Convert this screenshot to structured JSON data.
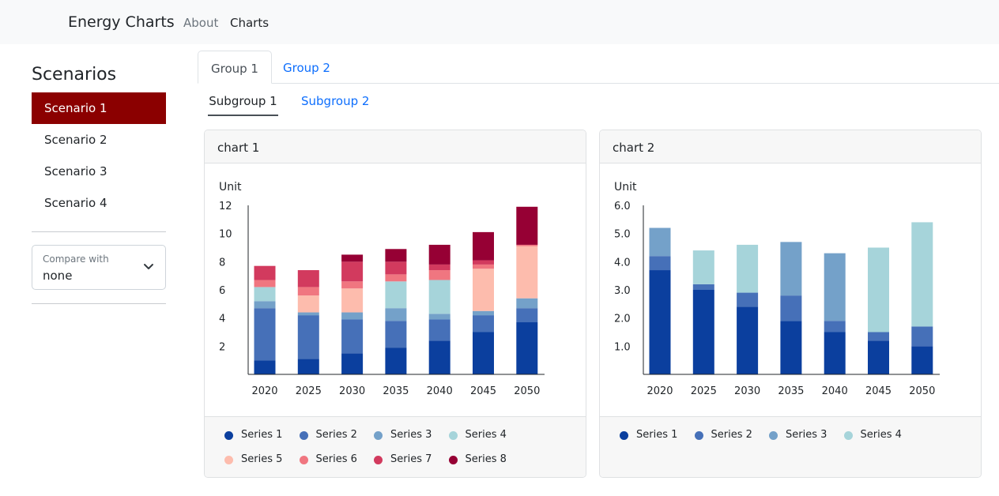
{
  "nav": {
    "brand": "Energy Charts",
    "about": "About",
    "charts": "Charts"
  },
  "sidebar": {
    "title": "Scenarios",
    "scenarios": [
      {
        "label": "Scenario 1",
        "active": true
      },
      {
        "label": "Scenario 2",
        "active": false
      },
      {
        "label": "Scenario 3",
        "active": false
      },
      {
        "label": "Scenario 4",
        "active": false
      }
    ],
    "compare": {
      "label": "Compare with",
      "value": "none"
    }
  },
  "tabs": [
    "Group 1",
    "Group 2"
  ],
  "subtabs": [
    "Subgroup 1",
    "Subgroup 2"
  ],
  "colors": {
    "Series 1": "#0b3f9e",
    "Series 2": "#4670b8",
    "Series 3": "#74a1c9",
    "Series 4": "#a6d4da",
    "Series 5": "#fdbcad",
    "Series 6": "#f07680",
    "Series 7": "#d23a5e",
    "Series 8": "#960034"
  },
  "chart_data": [
    {
      "type": "bar",
      "stacked": true,
      "title": "chart 1",
      "ylabel": "Unit",
      "ylim": [
        0,
        12
      ],
      "yticks": [
        "2",
        "4",
        "6",
        "8",
        "10",
        "12"
      ],
      "categories": [
        "2020",
        "2025",
        "2030",
        "2035",
        "2040",
        "2045",
        "2050"
      ],
      "series": [
        {
          "name": "Series 1",
          "values": [
            1.0,
            1.1,
            1.5,
            1.9,
            2.4,
            3.0,
            3.7
          ]
        },
        {
          "name": "Series 2",
          "values": [
            3.7,
            3.1,
            2.4,
            1.9,
            1.5,
            1.2,
            1.0
          ]
        },
        {
          "name": "Series 3",
          "values": [
            0.5,
            0.2,
            0.5,
            0.9,
            0.4,
            0.3,
            0.7
          ]
        },
        {
          "name": "Series 4",
          "values": [
            1.0,
            0.0,
            0.0,
            1.9,
            2.4,
            0.0,
            0.0
          ]
        },
        {
          "name": "Series 5",
          "values": [
            0.0,
            1.2,
            1.7,
            0.0,
            0.0,
            3.0,
            3.7
          ]
        },
        {
          "name": "Series 6",
          "values": [
            0.5,
            0.6,
            0.5,
            0.5,
            0.7,
            0.3,
            0.1
          ]
        },
        {
          "name": "Series 7",
          "values": [
            1.0,
            1.2,
            1.4,
            0.9,
            0.4,
            0.3,
            0.0
          ]
        },
        {
          "name": "Series 8",
          "values": [
            0.0,
            0.0,
            0.5,
            0.9,
            1.4,
            2.0,
            2.7
          ]
        }
      ],
      "legend_position": "bottom"
    },
    {
      "type": "bar",
      "stacked": true,
      "title": "chart 2",
      "ylabel": "Unit",
      "ylim": [
        0,
        6
      ],
      "yticks": [
        "1.0",
        "2.0",
        "3.0",
        "4.0",
        "5.0",
        "6.0"
      ],
      "categories": [
        "2020",
        "2025",
        "2030",
        "2035",
        "2040",
        "2045",
        "2050"
      ],
      "series": [
        {
          "name": "Series 1",
          "values": [
            3.7,
            3.0,
            2.4,
            1.9,
            1.5,
            1.2,
            1.0
          ]
        },
        {
          "name": "Series 2",
          "values": [
            0.5,
            0.2,
            0.5,
            0.9,
            0.4,
            0.3,
            0.7
          ]
        },
        {
          "name": "Series 3",
          "values": [
            1.0,
            0.0,
            0.0,
            1.9,
            2.4,
            0.0,
            0.0
          ]
        },
        {
          "name": "Series 4",
          "values": [
            0.0,
            1.2,
            1.7,
            0.0,
            0.0,
            3.0,
            3.7
          ]
        }
      ],
      "legend_position": "bottom"
    }
  ]
}
